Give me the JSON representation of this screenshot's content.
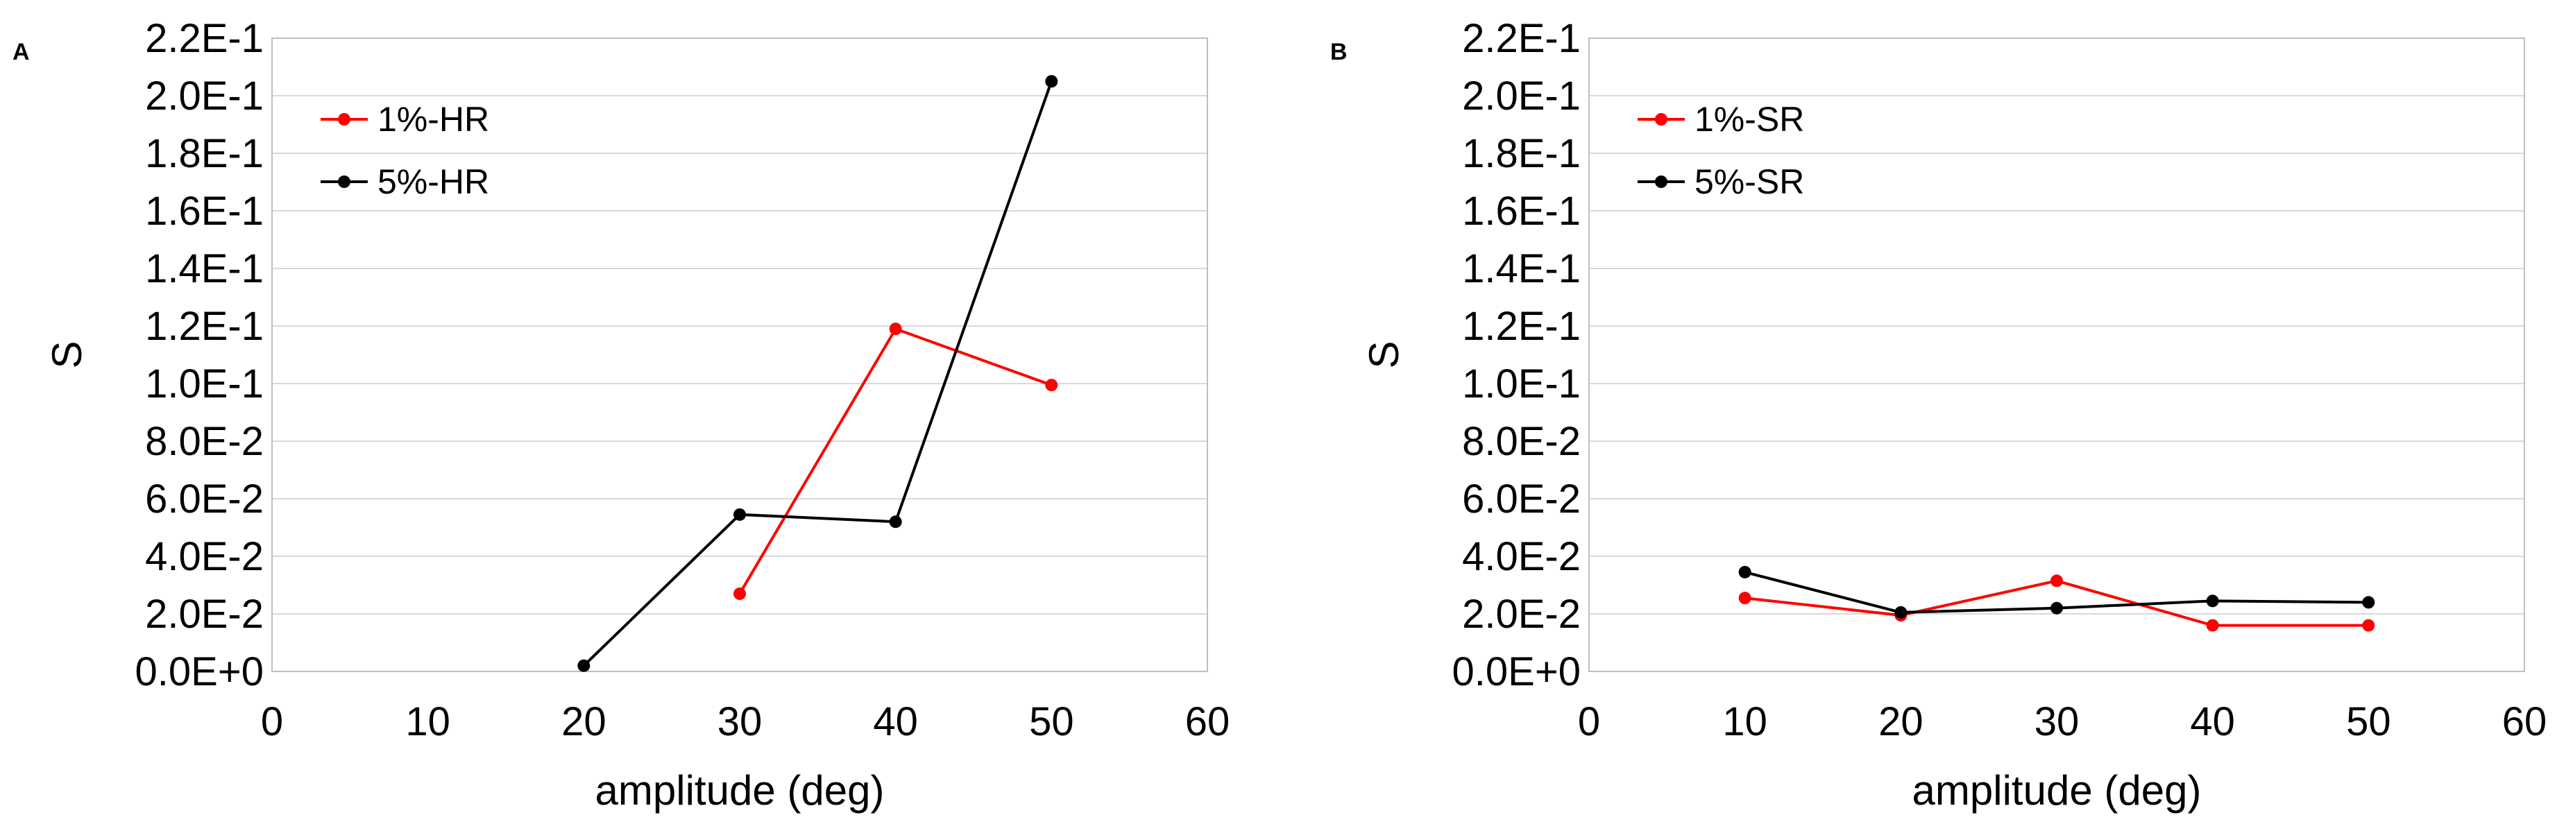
{
  "chart_data": [
    {
      "type": "line",
      "panel_label": "A",
      "xlabel": "amplitude (deg)",
      "ylabel": "S",
      "xlim": [
        0,
        60
      ],
      "ylim": [
        0,
        0.22
      ],
      "x_ticks": [
        "0",
        "10",
        "20",
        "30",
        "40",
        "50",
        "60"
      ],
      "y_ticks": [
        "0.0E+0",
        "2.0E-2",
        "4.0E-2",
        "6.0E-2",
        "8.0E-2",
        "1.0E-1",
        "1.2E-1",
        "1.4E-1",
        "1.6E-1",
        "1.8E-1",
        "2.0E-1",
        "2.2E-1"
      ],
      "grid": true,
      "legend_position": "top-left",
      "series": [
        {
          "name": "1%-HR",
          "color": "#ff0000",
          "x": [
            30,
            40,
            50
          ],
          "y": [
            0.027,
            0.119,
            0.0995
          ]
        },
        {
          "name": "5%-HR",
          "color": "#000000",
          "x": [
            20,
            30,
            40,
            50
          ],
          "y": [
            0.002,
            0.0545,
            0.052,
            0.205
          ]
        }
      ]
    },
    {
      "type": "line",
      "panel_label": "B",
      "xlabel": "amplitude (deg)",
      "ylabel": "S",
      "xlim": [
        0,
        60
      ],
      "ylim": [
        0,
        0.22
      ],
      "x_ticks": [
        "0",
        "10",
        "20",
        "30",
        "40",
        "50",
        "60"
      ],
      "y_ticks": [
        "0.0E+0",
        "2.0E-2",
        "4.0E-2",
        "6.0E-2",
        "8.0E-2",
        "1.0E-1",
        "1.2E-1",
        "1.4E-1",
        "1.6E-1",
        "1.8E-1",
        "2.0E-1",
        "2.2E-1"
      ],
      "grid": true,
      "legend_position": "top-left",
      "series": [
        {
          "name": "1%-SR",
          "color": "#ff0000",
          "x": [
            10,
            20,
            30,
            40,
            50
          ],
          "y": [
            0.0255,
            0.0195,
            0.0315,
            0.016,
            0.016
          ]
        },
        {
          "name": "5%-SR",
          "color": "#000000",
          "x": [
            10,
            20,
            30,
            40,
            50
          ],
          "y": [
            0.0345,
            0.0205,
            0.022,
            0.0245,
            0.024
          ]
        }
      ]
    }
  ]
}
